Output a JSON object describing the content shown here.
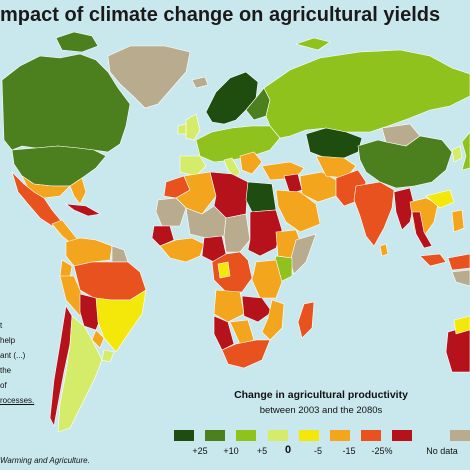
{
  "title": "mpact of climate change on agricultural yields",
  "left_note": [
    "t",
    "help",
    "ant (...)",
    "the",
    "of",
    "rocesses."
  ],
  "source": "Warming and Agriculture.",
  "legend": {
    "title": "Change in agricultural productivity",
    "subtitle": "between 2003 and the 2080s",
    "items": [
      {
        "label": "+25",
        "color": "#1e4d0f"
      },
      {
        "label": "+10",
        "color": "#4c7f1e"
      },
      {
        "label": "+5",
        "color": "#8fc21c"
      },
      {
        "label": "0",
        "color": "#d4ec6a"
      },
      {
        "label": "-5",
        "color": "#f4e80a"
      },
      {
        "label": "-15",
        "color": "#f3a51e"
      },
      {
        "label": "-25%",
        "color": "#e8521f"
      },
      {
        "label": "",
        "color": "#b5121b"
      },
      {
        "label": "No data",
        "color": "#b9ab8e"
      }
    ]
  },
  "colors": {
    "ocean": "#c9e8ee",
    "dark_green": "#1e4d0f",
    "mid_green": "#4c7f1e",
    "light_green": "#8fc21c",
    "pale_green": "#d4ec6a",
    "yellow": "#f4e80a",
    "orange": "#f3a51e",
    "red_orange": "#e8521f",
    "red": "#b5121b",
    "no_data": "#b9ab8e"
  }
}
